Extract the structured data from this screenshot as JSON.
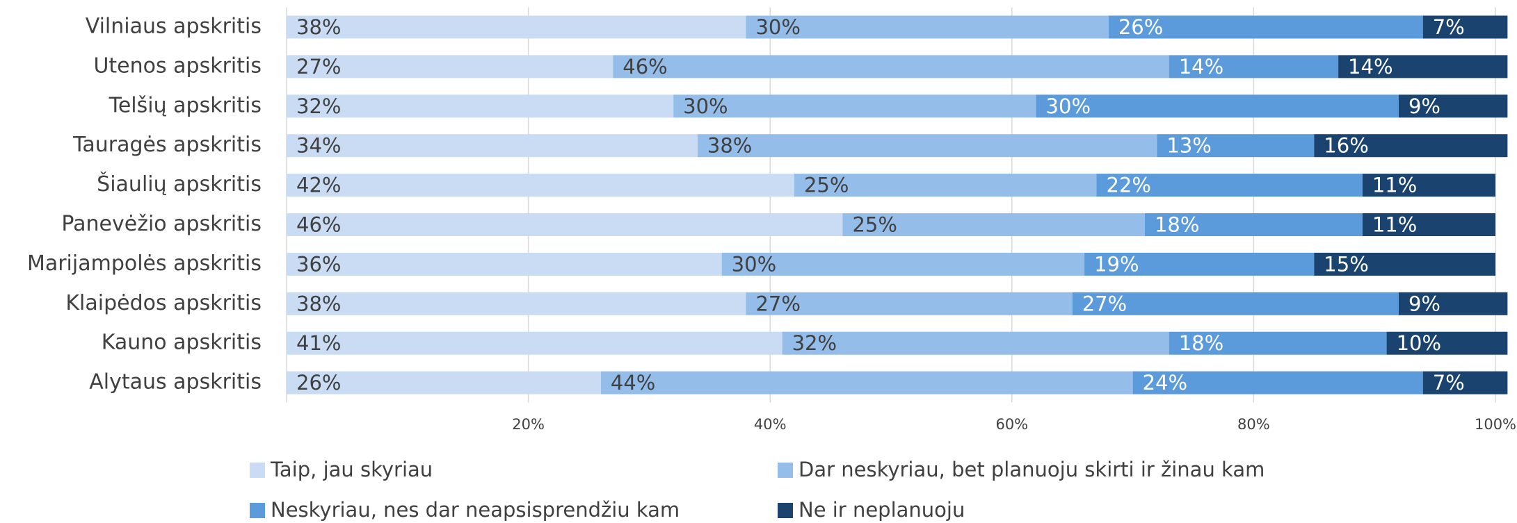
{
  "chart_data": {
    "type": "stacked_barh",
    "categories": [
      "Vilniaus apskritis",
      "Utenos apskritis",
      "Telšių apskritis",
      "Tauragės apskritis",
      "Šiaulių apskritis",
      "Panevėžio apskritis",
      "Marijampolės apskritis",
      "Klaipėdos apskritis",
      "Kauno apskritis",
      "Alytaus apskritis"
    ],
    "series": [
      {
        "name": "Taip, jau skyriau",
        "color": "#c9dcf3",
        "values": [
          38,
          27,
          32,
          34,
          42,
          46,
          36,
          38,
          41,
          26
        ],
        "value_labels": [
          "38%",
          "27%",
          "32%",
          "34%",
          "42%",
          "46%",
          "36%",
          "38%",
          "41%",
          "26%"
        ]
      },
      {
        "name": "Dar neskyriau, bet planuoju skirti ir žinau kam",
        "color": "#94bde9",
        "values": [
          30,
          46,
          30,
          38,
          25,
          25,
          30,
          27,
          32,
          44
        ],
        "value_labels": [
          "30%",
          "46%",
          "30%",
          "38%",
          "25%",
          "25%",
          "30%",
          "27%",
          "32%",
          "44%"
        ]
      },
      {
        "name": "Neskyriau, nes dar neapsisprendžiu kam",
        "color": "#5b9bdb",
        "values": [
          26,
          14,
          30,
          13,
          22,
          18,
          19,
          27,
          18,
          24
        ],
        "value_labels": [
          "26%",
          "14%",
          "30%",
          "13%",
          "22%",
          "18%",
          "19%",
          "27%",
          "18%",
          "24%"
        ]
      },
      {
        "name": "Ne ir neplanuoju",
        "color": "#1a436f",
        "values": [
          7,
          14,
          9,
          16,
          11,
          11,
          15,
          9,
          10,
          7
        ],
        "value_labels": [
          "7%",
          "14%",
          "9%",
          "16%",
          "11%",
          "11%",
          "15%",
          "9%",
          "10%",
          "7%"
        ]
      }
    ],
    "xlim": [
      0,
      100
    ],
    "xticks": [
      {
        "value": 20,
        "label": "20%"
      },
      {
        "value": 40,
        "label": "40%"
      },
      {
        "value": 60,
        "label": "60%"
      },
      {
        "value": 80,
        "label": "80%"
      },
      {
        "value": 100,
        "label": "100%"
      }
    ],
    "grid": true
  }
}
